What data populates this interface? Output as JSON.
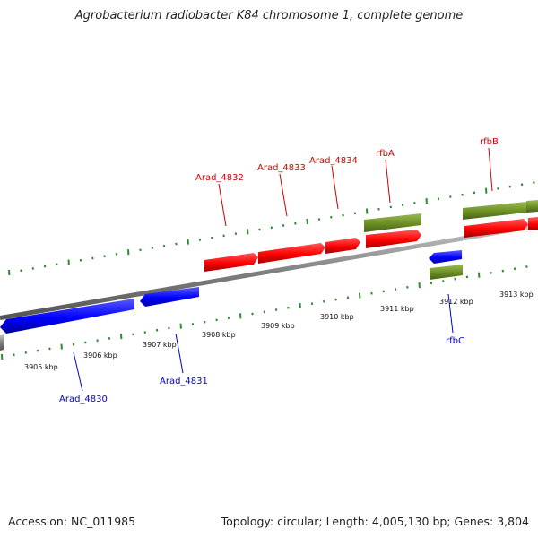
{
  "title": "Agrobacterium radiobacter K84 chromosome 1, complete genome",
  "footer": {
    "accession": "Accession: NC_011985",
    "summary": "Topology: circular; Length: 4,005,130 bp; Genes: 3,804"
  },
  "colors": {
    "forward_gene": "#ff0000",
    "reverse_gene": "#0000ff",
    "forward_rna": "#6b8e23",
    "reverse_rna": "#6b8e23",
    "backbone": "#808080",
    "ticks": "#2e8b2e",
    "forward_label": "#cc0000",
    "reverse_label": "#0000cc"
  },
  "ruler": {
    "unit": "kbp",
    "labels": [
      "3905 kbp",
      "3906 kbp",
      "3907 kbp",
      "3908 kbp",
      "3909 kbp",
      "3910 kbp",
      "3911 kbp",
      "3912 kbp",
      "3913 kbp"
    ]
  },
  "genes": [
    {
      "name": "Arad_4830",
      "strand": "reverse",
      "labeled": true
    },
    {
      "name": "Arad_4831",
      "strand": "reverse",
      "labeled": true
    },
    {
      "name": "Arad_4832",
      "strand": "forward",
      "labeled": true
    },
    {
      "name": "Arad_4833",
      "strand": "forward",
      "labeled": true
    },
    {
      "name": "Arad_4834",
      "strand": "forward",
      "labeled": true
    },
    {
      "name": "rfbA",
      "strand": "forward",
      "labeled": true
    },
    {
      "name": "rfbB",
      "strand": "forward",
      "labeled": true
    },
    {
      "name": "rfbC",
      "strand": "reverse",
      "labeled": true
    }
  ]
}
